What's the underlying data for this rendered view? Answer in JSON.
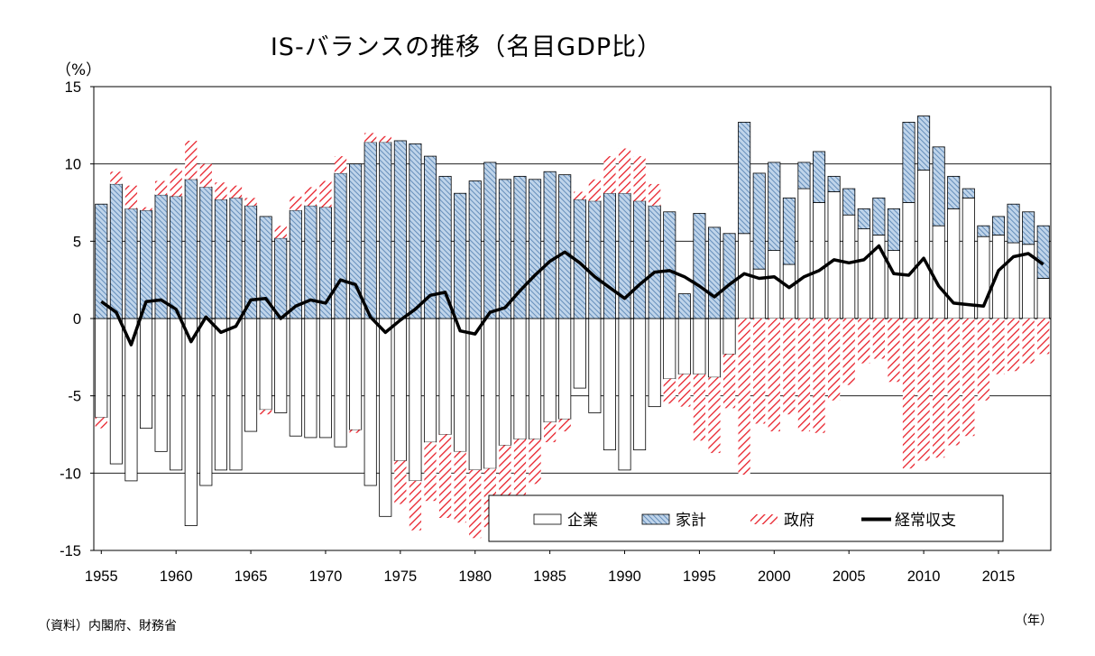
{
  "title": "IS-バランスの推移（名目GDP比）",
  "unit_label": "（%）",
  "source": "（資料）内閣府、財務省",
  "x_unit_label": "（年）",
  "chart_data": {
    "type": "bar",
    "stacked": true,
    "title": "IS-バランスの推移（名目GDP比）",
    "ylabel": "（%）",
    "xlabel": "（年）",
    "ylim": [
      -15,
      15
    ],
    "yticks": [
      "15",
      "10",
      "5",
      "0",
      "-5",
      "-10",
      "-15"
    ],
    "ytick_values": [
      15,
      10,
      5,
      0,
      -5,
      -10,
      -15
    ],
    "xticks": [
      "1955",
      "1960",
      "1965",
      "1970",
      "1975",
      "1980",
      "1985",
      "1990",
      "1995",
      "2000",
      "2005",
      "2010",
      "2015"
    ],
    "xtick_values": [
      1955,
      1960,
      1965,
      1970,
      1975,
      1980,
      1985,
      1990,
      1995,
      2000,
      2005,
      2010,
      2015
    ],
    "grid": true,
    "legend_position": "bottom-right",
    "colors": {
      "corporate_fill": "#ffffff",
      "household_fill": "#bfd4ea",
      "household_stripe": "#5b86b5",
      "government_stripe": "#e8202a",
      "current_account_line": "#000000"
    },
    "x": [
      1955,
      1956,
      1957,
      1958,
      1959,
      1960,
      1961,
      1962,
      1963,
      1964,
      1965,
      1966,
      1967,
      1968,
      1969,
      1970,
      1971,
      1972,
      1973,
      1974,
      1975,
      1976,
      1977,
      1978,
      1979,
      1980,
      1981,
      1982,
      1983,
      1984,
      1985,
      1986,
      1987,
      1988,
      1989,
      1990,
      1991,
      1992,
      1993,
      1994,
      1995,
      1996,
      1997,
      1998,
      1999,
      2000,
      2001,
      2002,
      2003,
      2004,
      2005,
      2006,
      2007,
      2008,
      2009,
      2010,
      2011,
      2012,
      2013,
      2014,
      2015,
      2016,
      2017,
      2018
    ],
    "series": [
      {
        "name": "企業",
        "values": [
          -6.4,
          -9.4,
          -10.5,
          -7.1,
          -8.6,
          -9.8,
          -13.4,
          -10.8,
          -9.8,
          -9.8,
          -7.3,
          -5.9,
          -6.1,
          -7.6,
          -7.7,
          -7.7,
          -8.3,
          -7.2,
          -10.8,
          -12.8,
          -9.2,
          -10.5,
          -8.0,
          -7.5,
          -8.6,
          -9.8,
          -9.7,
          -8.2,
          -7.8,
          -7.8,
          -6.7,
          -6.5,
          -4.5,
          -6.1,
          -8.5,
          -9.8,
          -8.5,
          -5.7,
          -3.9,
          -3.6,
          -3.6,
          -3.8,
          -2.3,
          5.5,
          3.2,
          4.4,
          3.5,
          8.4,
          7.5,
          8.2,
          6.7,
          5.8,
          5.4,
          4.4,
          7.5,
          9.6,
          6.0,
          7.1,
          7.8,
          5.3,
          5.4,
          4.9,
          4.8,
          2.6
        ]
      },
      {
        "name": "家計",
        "values": [
          7.4,
          8.7,
          7.1,
          7.0,
          8.0,
          7.9,
          9.0,
          8.5,
          7.7,
          7.8,
          7.3,
          6.6,
          5.2,
          7.0,
          7.3,
          7.2,
          9.4,
          10.0,
          11.4,
          11.4,
          11.5,
          11.3,
          10.5,
          9.2,
          8.1,
          8.9,
          10.1,
          9.0,
          9.2,
          9.0,
          9.5,
          9.3,
          7.7,
          7.6,
          8.1,
          8.1,
          7.6,
          7.3,
          6.9,
          1.6,
          6.8,
          5.9,
          5.5,
          7.2,
          6.2,
          5.7,
          4.3,
          1.7,
          3.3,
          1.0,
          1.7,
          1.3,
          2.4,
          2.7,
          5.2,
          3.5,
          5.1,
          2.1,
          0.6,
          0.7,
          1.2,
          2.5,
          2.1,
          3.4
        ]
      },
      {
        "name": "政府",
        "values": [
          -0.7,
          0.8,
          1.5,
          0.2,
          0.9,
          1.8,
          2.5,
          1.5,
          1.1,
          0.8,
          0.5,
          -0.3,
          0.8,
          0.9,
          1.2,
          1.7,
          1.1,
          -0.2,
          0.6,
          0.4,
          -2.8,
          -3.2,
          -3.8,
          -5.4,
          -4.6,
          -4.4,
          -3.8,
          -3.4,
          -3.6,
          -2.9,
          -1.3,
          -0.8,
          0.5,
          1.4,
          2.4,
          2.9,
          2.9,
          1.4,
          -1.6,
          -2.1,
          -4.3,
          -4.9,
          -3.5,
          -10.1,
          -6.8,
          -7.3,
          -6.2,
          -7.3,
          -7.4,
          -5.3,
          -4.3,
          -2.9,
          -2.6,
          -4.1,
          -9.7,
          -9.2,
          -9.0,
          -8.2,
          -7.6,
          -5.3,
          -3.6,
          -3.4,
          -2.9,
          -2.3
        ]
      },
      {
        "name": "経常収支",
        "values": [
          1.1,
          0.4,
          -1.7,
          1.1,
          1.2,
          0.6,
          -1.5,
          0.1,
          -0.9,
          -0.5,
          1.2,
          1.3,
          0.0,
          0.8,
          1.2,
          1.0,
          2.5,
          2.2,
          0.1,
          -0.9,
          -0.1,
          0.6,
          1.5,
          1.7,
          -0.8,
          -1.0,
          0.4,
          0.7,
          1.8,
          2.8,
          3.7,
          4.3,
          3.6,
          2.7,
          2.0,
          1.3,
          2.2,
          3.0,
          3.1,
          2.7,
          2.1,
          1.4,
          2.2,
          2.9,
          2.6,
          2.7,
          2.0,
          2.7,
          3.1,
          3.8,
          3.6,
          3.8,
          4.7,
          2.9,
          2.8,
          3.9,
          2.1,
          1.0,
          0.9,
          0.8,
          3.1,
          4.0,
          4.2,
          3.5
        ]
      }
    ]
  }
}
